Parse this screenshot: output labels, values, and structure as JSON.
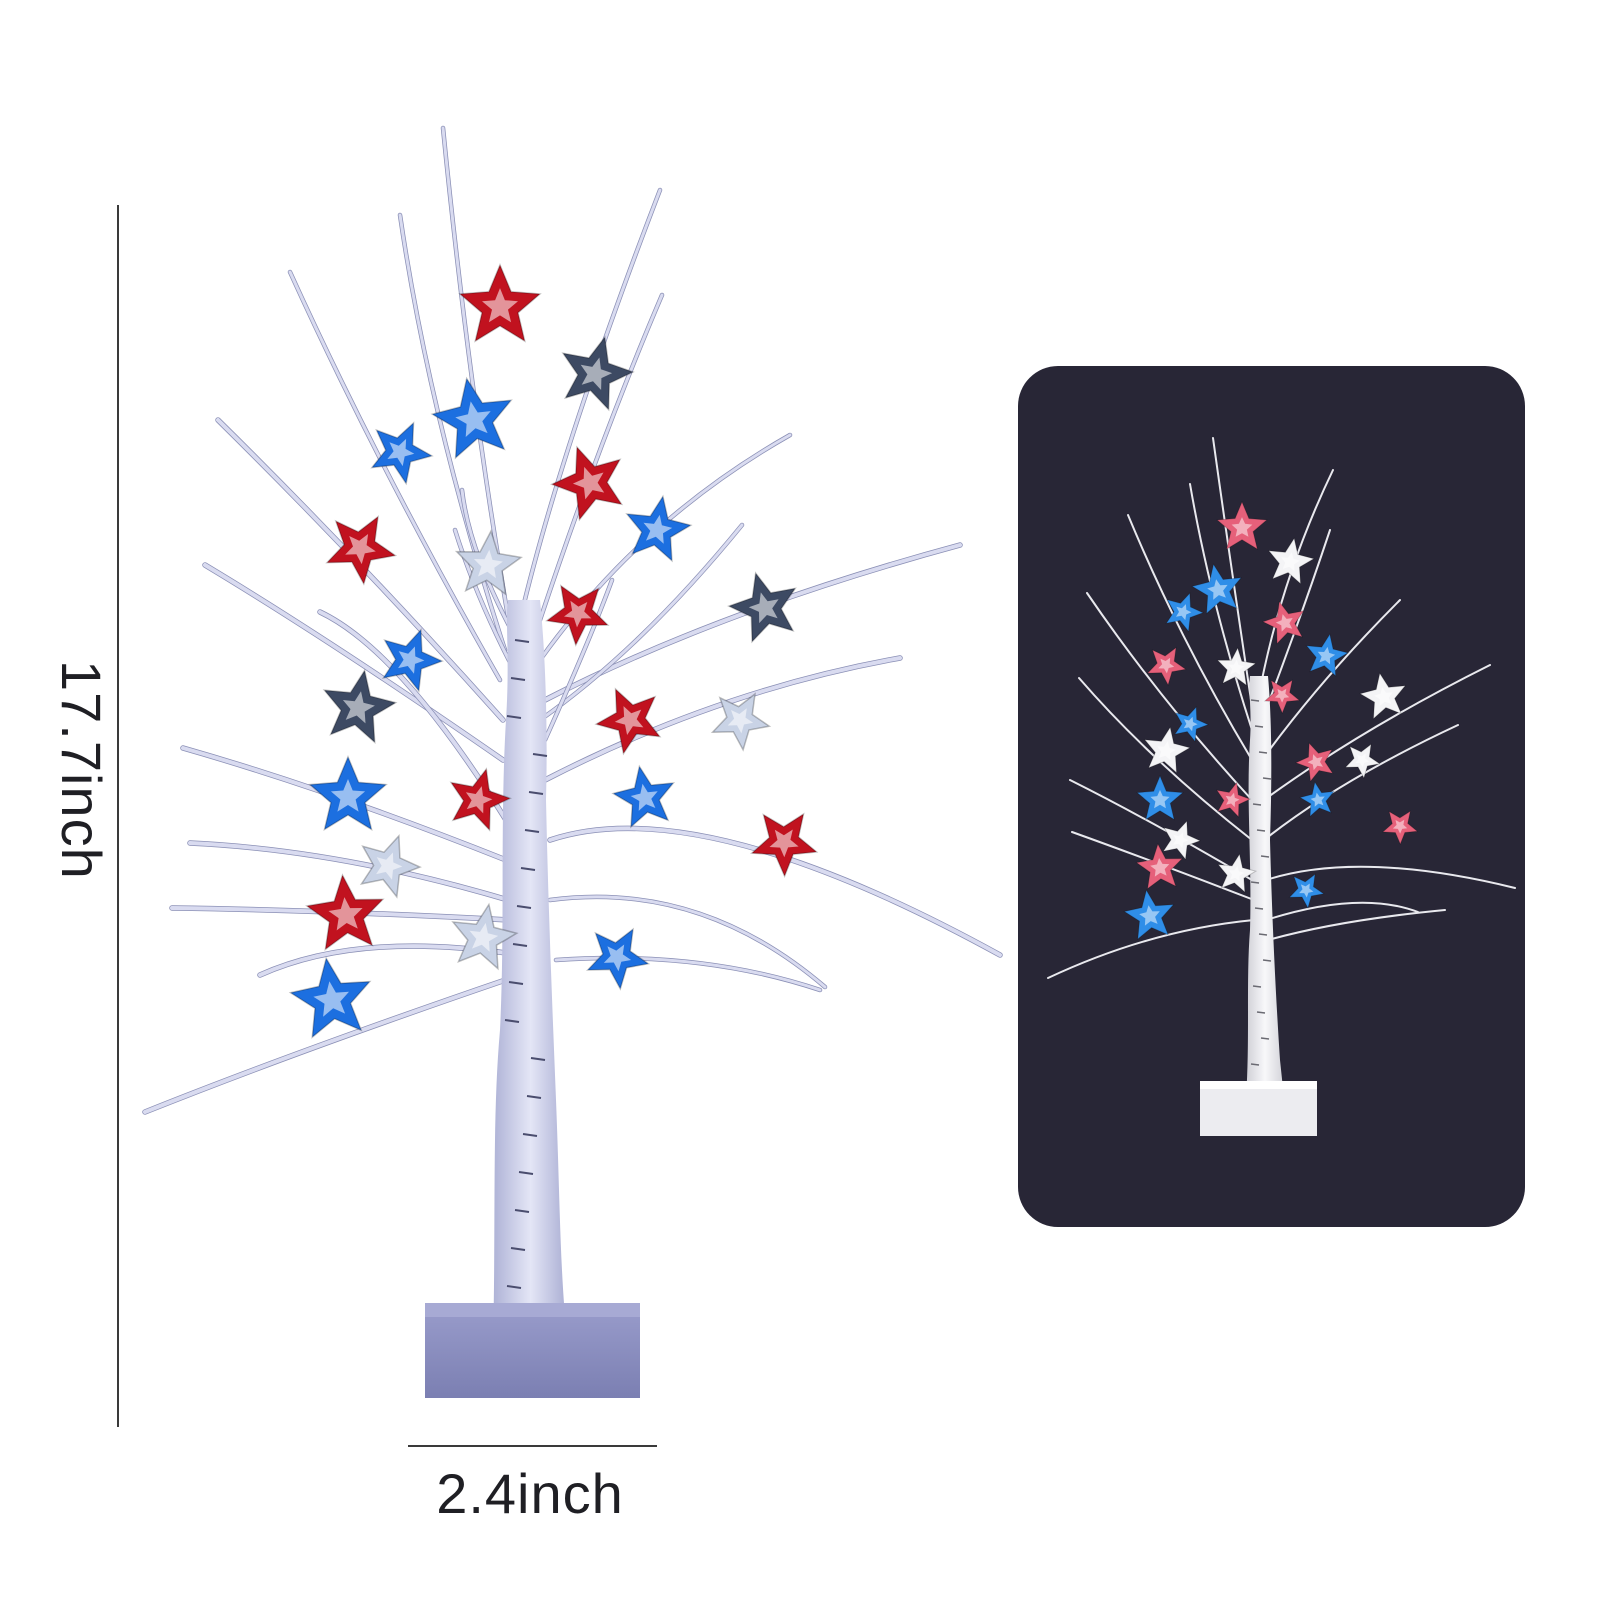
{
  "product": {
    "height_label": "17.7inch",
    "width_label": "2.4inch"
  },
  "colors": {
    "background": "#ffffff",
    "dimension_line": "#3a3a3a",
    "dimension_text": "#1f1f24",
    "branch": "#d9dbf0",
    "branch_shadow": "#8a8fb5",
    "trunk": "#cfd2ea",
    "base": "#8d90bf",
    "star_red": "#c1121f",
    "star_blue": "#1c6fe0",
    "star_white": "#c9d3e6",
    "star_dark": "#3d4a63",
    "night_panel": "#282636",
    "night_star_pink": "#e6607a",
    "night_star_blue": "#2f8ee8",
    "night_star_white": "#f4f4f6",
    "night_trunk": "#ecebef"
  },
  "icons": [
    "star-icon",
    "tree-icon"
  ]
}
